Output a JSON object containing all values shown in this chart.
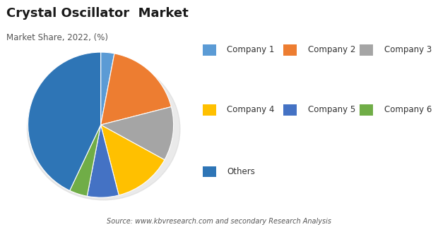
{
  "title": "Crystal Oscillator  Market",
  "subtitle": "Market Share, 2022, (%)",
  "source_text": "Source: www.kbvresearch.com and secondary Research Analysis",
  "labels": [
    "Company 1",
    "Company 2",
    "Company 3",
    "Company 4",
    "Company 5",
    "Company 6",
    "Others"
  ],
  "values": [
    3,
    18,
    12,
    13,
    7,
    4,
    43
  ],
  "colors": [
    "#5B9BD5",
    "#ED7D31",
    "#A5A5A5",
    "#FFC000",
    "#4472C4",
    "#70AD47",
    "#2E75B6"
  ],
  "background_color": "#FFFFFF",
  "startangle": 90
}
